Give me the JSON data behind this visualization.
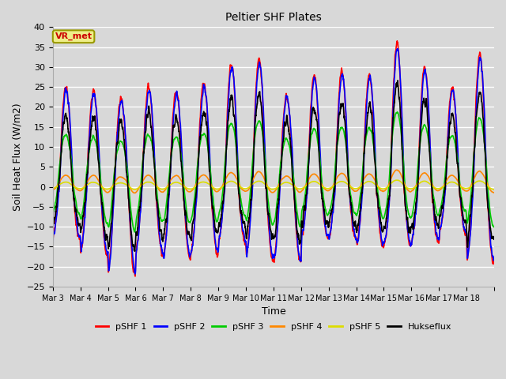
{
  "title": "Peltier SHF Plates",
  "xlabel": "Time",
  "ylabel": "Soil Heat Flux (W/m2)",
  "ylim": [
    -25,
    40
  ],
  "yticks": [
    -25,
    -20,
    -15,
    -10,
    -5,
    0,
    5,
    10,
    15,
    20,
    25,
    30,
    35,
    40
  ],
  "series": [
    {
      "label": "pSHF 1",
      "color": "#ff0000",
      "lw": 1.2
    },
    {
      "label": "pSHF 2",
      "color": "#0000ff",
      "lw": 1.2
    },
    {
      "label": "pSHF 3",
      "color": "#00cc00",
      "lw": 1.2
    },
    {
      "label": "pSHF 4",
      "color": "#ff8800",
      "lw": 1.2
    },
    {
      "label": "pSHF 5",
      "color": "#dddd00",
      "lw": 1.2
    },
    {
      "label": "Hukseflux",
      "color": "#000000",
      "lw": 1.2
    }
  ],
  "xtick_labels": [
    "Mar 3",
    "Mar 4",
    "Mar 5",
    "Mar 6",
    "Mar 7",
    "Mar 8",
    "Mar 9",
    "Mar 10",
    "Mar 11",
    "Mar 12",
    "Mar 13",
    "Mar 14",
    "Mar 15",
    "Mar 16",
    "Mar 17",
    "Mar 18"
  ],
  "annotation_text": "VR_met",
  "annotation_color": "#cc0000",
  "annotation_bg": "#eeee88",
  "annotation_edge": "#999900",
  "n_days": 16,
  "pts_per_day": 144,
  "peak_pattern": [
    25,
    24,
    22,
    25,
    24,
    26,
    31,
    32,
    23,
    28,
    29,
    28,
    36,
    30,
    25,
    33
  ],
  "trough_pattern": [
    -13,
    -17,
    -22,
    -17,
    -18,
    -17,
    -14,
    -18,
    -19,
    -13,
    -13,
    -15,
    -15,
    -14,
    -12,
    -19
  ]
}
